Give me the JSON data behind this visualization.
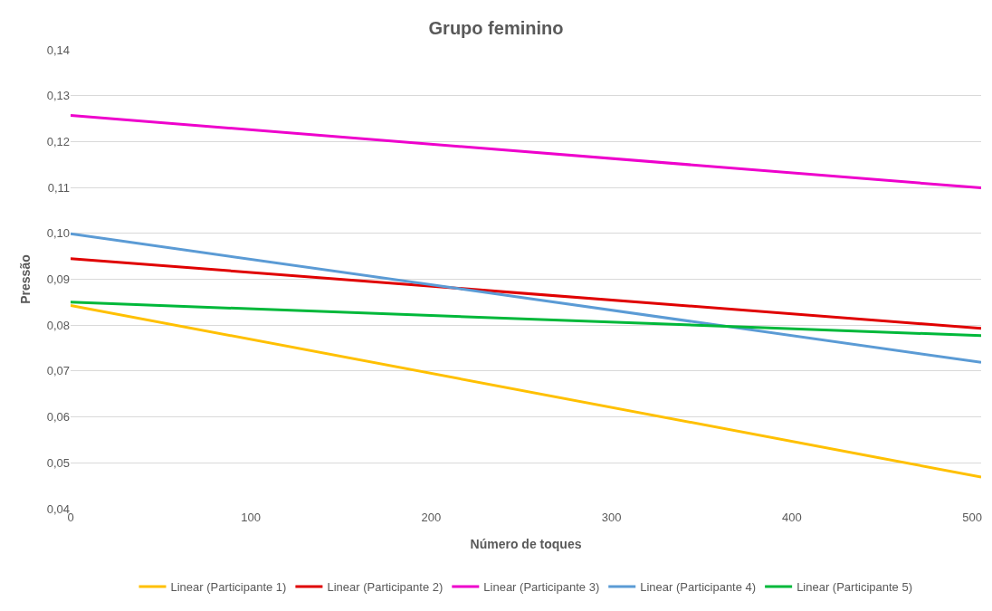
{
  "chart_data": {
    "type": "line",
    "title": "Grupo feminino",
    "xlabel": "Número de toques",
    "ylabel": "Pressão",
    "x": [
      0,
      505
    ],
    "series": [
      {
        "name": "Linear (Participante 1)",
        "color": "#ffc000",
        "values": [
          0.0843,
          0.0469
        ]
      },
      {
        "name": "Linear (Participante 2)",
        "color": "#e00000",
        "values": [
          0.0945,
          0.0793
        ]
      },
      {
        "name": "Linear (Participante 3)",
        "color": "#ee00cc",
        "values": [
          0.1257,
          0.1099
        ]
      },
      {
        "name": "Linear (Participante 4)",
        "color": "#5b9bd5",
        "values": [
          0.0999,
          0.0719
        ]
      },
      {
        "name": "Linear (Participante 5)",
        "color": "#00b83a",
        "values": [
          0.085,
          0.0777
        ]
      }
    ],
    "xlim": [
      0,
      505
    ],
    "xticks": [
      0,
      100,
      200,
      300,
      400,
      500
    ],
    "ylim": [
      0.04,
      0.14
    ],
    "yticks": [
      {
        "value": 0.04,
        "label": "0,04"
      },
      {
        "value": 0.05,
        "label": "0,05"
      },
      {
        "value": 0.06,
        "label": "0,06"
      },
      {
        "value": 0.07,
        "label": "0,07"
      },
      {
        "value": 0.08,
        "label": "0,08"
      },
      {
        "value": 0.09,
        "label": "0,09"
      },
      {
        "value": 0.1,
        "label": "0,10"
      },
      {
        "value": 0.11,
        "label": "0,11"
      },
      {
        "value": 0.12,
        "label": "0,12"
      },
      {
        "value": 0.13,
        "label": "0,13"
      },
      {
        "value": 0.14,
        "label": "0,14"
      }
    ],
    "grid": "y",
    "legend": "bottom",
    "marker": "none",
    "line_style": "solid"
  }
}
